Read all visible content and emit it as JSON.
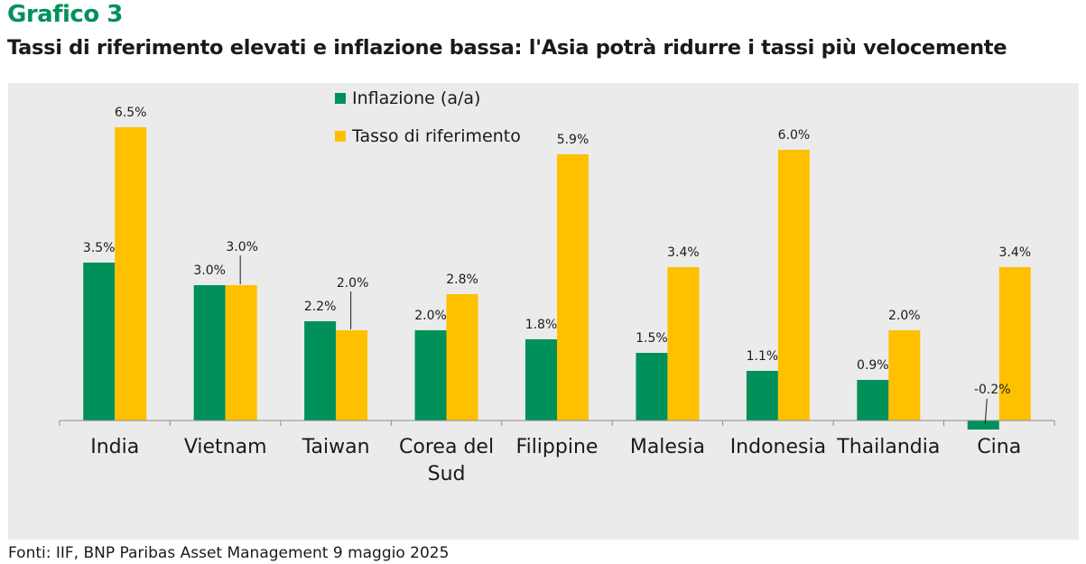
{
  "header": {
    "chart_label": "Grafico 3",
    "title": "Tassi di riferimento elevati e inflazione bassa: l'Asia potrà ridurre i tassi più velocemente"
  },
  "footer": {
    "source": "Fonti: IIF, BNP Paribas Asset Management  9 maggio 2025"
  },
  "colors": {
    "inflation": "#00915a",
    "policy_rate": "#ffc000",
    "plot_background": "#ebebeb",
    "title_accent": "#00915a"
  },
  "chart_data": {
    "type": "bar",
    "title": "Tassi di riferimento elevati e inflazione bassa: l'Asia potrà ridurre i tassi più velocemente",
    "xlabel": "",
    "ylabel": "",
    "grid": false,
    "legend_position": "top-center",
    "categories": [
      "India",
      "Vietnam",
      "Taiwan",
      "Corea del Sud",
      "Filippine",
      "Malesia",
      "Indonesia",
      "Thailandia",
      "Cina"
    ],
    "series": [
      {
        "name": "Inflazione (a/a)",
        "color": "#00915a",
        "values": [
          3.5,
          3.0,
          2.2,
          2.0,
          1.8,
          1.5,
          1.1,
          0.9,
          -0.2
        ],
        "labels": [
          "3.5%",
          "3.0%",
          "2.2%",
          "2.0%",
          "1.8%",
          "1.5%",
          "1.1%",
          "0.9%",
          "-0.2%"
        ]
      },
      {
        "name": "Tasso di riferimento",
        "color": "#ffc000",
        "values": [
          6.5,
          3.0,
          2.0,
          2.8,
          5.9,
          3.4,
          6.0,
          2.0,
          3.4
        ],
        "labels": [
          "6.5%",
          "3.0%",
          "2.0%",
          "2.8%",
          "5.9%",
          "3.4%",
          "6.0%",
          "2.0%",
          "3.4%"
        ]
      }
    ],
    "ylim": [
      -0.3,
      6.8
    ]
  }
}
